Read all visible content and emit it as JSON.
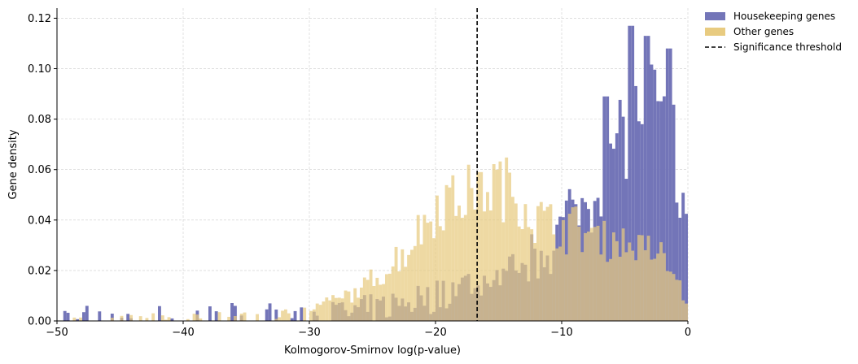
{
  "chart_data": {
    "type": "bar",
    "title": "",
    "xlabel": "Kolmogorov-Smirnov log(p-value)",
    "ylabel": "Gene density",
    "xlim": [
      -50,
      0
    ],
    "ylim": [
      0,
      0.124
    ],
    "x_ticks": [
      -50,
      -40,
      -30,
      -20,
      -10,
      0
    ],
    "x_tick_labels": [
      "−50",
      "−40",
      "−30",
      "−20",
      "−10",
      "0"
    ],
    "y_ticks": [
      0,
      0.02,
      0.04,
      0.06,
      0.08,
      0.1,
      0.12
    ],
    "y_tick_labels": [
      "0.00",
      "0.02",
      "0.04",
      "0.06",
      "0.08",
      "0.10",
      "0.12"
    ],
    "grid": true,
    "legend_position": "outside-top-right",
    "bin_width": 0.25,
    "bin_start": -50,
    "threshold": -16.7,
    "legend": [
      {
        "label": "Housekeeping genes",
        "kind": "patch",
        "color": "#7375b8"
      },
      {
        "label": "Other genes",
        "kind": "patch",
        "color": "#e8cb80"
      },
      {
        "label": "Significance threshold",
        "kind": "dashed-line",
        "color": "#000000"
      }
    ],
    "series": [
      {
        "name": "Housekeeping genes",
        "color": "#7375b8",
        "anchors": [
          [
            -50,
            0.001
          ],
          [
            -40,
            0.001
          ],
          [
            -30,
            0.002
          ],
          [
            -25,
            0.004
          ],
          [
            -20,
            0.01
          ],
          [
            -17,
            0.015
          ],
          [
            -15,
            0.016
          ],
          [
            -13,
            0.022
          ],
          [
            -11,
            0.03
          ],
          [
            -10,
            0.038
          ],
          [
            -8,
            0.048
          ],
          [
            -6,
            0.065
          ],
          [
            -5,
            0.078
          ],
          [
            -4,
            0.083
          ],
          [
            -3,
            0.085
          ],
          [
            -2,
            0.08
          ],
          [
            -1,
            0.07
          ],
          [
            -0.5,
            0.05
          ],
          [
            -0.1,
            0.035
          ]
        ],
        "noise": 0.012,
        "peak": [
          [
            -4.6,
            0.117
          ],
          [
            -3.3,
            0.113
          ],
          [
            -1.4,
            0.108
          ],
          [
            -6.6,
            0.089
          ]
        ]
      },
      {
        "name": "Other genes",
        "color": "#e8cb80",
        "anchors": [
          [
            -50,
            0.001
          ],
          [
            -40,
            0.001
          ],
          [
            -35,
            0.002
          ],
          [
            -30,
            0.004
          ],
          [
            -28,
            0.008
          ],
          [
            -26,
            0.012
          ],
          [
            -24,
            0.02
          ],
          [
            -22,
            0.03
          ],
          [
            -20,
            0.046
          ],
          [
            -18,
            0.05
          ],
          [
            -16.5,
            0.053
          ],
          [
            -15,
            0.054
          ],
          [
            -13,
            0.048
          ],
          [
            -12,
            0.04
          ],
          [
            -10,
            0.038
          ],
          [
            -8,
            0.035
          ],
          [
            -6,
            0.032
          ],
          [
            -4,
            0.03
          ],
          [
            -2,
            0.025
          ],
          [
            -1,
            0.018
          ],
          [
            -0.2,
            0.01
          ]
        ],
        "noise": 0.004,
        "peak": [
          [
            -16.5,
            0.059
          ]
        ]
      }
    ]
  }
}
